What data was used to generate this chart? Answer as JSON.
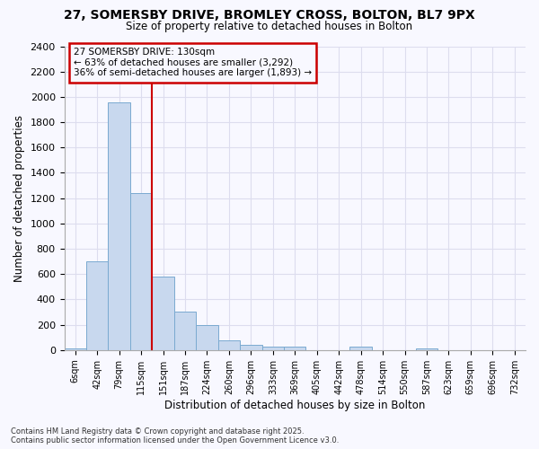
{
  "title1": "27, SOMERSBY DRIVE, BROMLEY CROSS, BOLTON, BL7 9PX",
  "title2": "Size of property relative to detached houses in Bolton",
  "xlabel": "Distribution of detached houses by size in Bolton",
  "ylabel": "Number of detached properties",
  "bar_labels": [
    "6sqm",
    "42sqm",
    "79sqm",
    "115sqm",
    "151sqm",
    "187sqm",
    "224sqm",
    "260sqm",
    "296sqm",
    "333sqm",
    "369sqm",
    "405sqm",
    "442sqm",
    "478sqm",
    "514sqm",
    "550sqm",
    "587sqm",
    "623sqm",
    "659sqm",
    "696sqm",
    "732sqm"
  ],
  "bar_values": [
    15,
    700,
    1960,
    1240,
    580,
    305,
    200,
    80,
    45,
    30,
    30,
    0,
    0,
    30,
    0,
    0,
    10,
    0,
    0,
    0,
    0
  ],
  "bar_color": "#c8d8ee",
  "bar_edge_color": "#7aaad0",
  "bar_width": 1.0,
  "ylim": [
    0,
    2400
  ],
  "yticks": [
    0,
    200,
    400,
    600,
    800,
    1000,
    1200,
    1400,
    1600,
    1800,
    2000,
    2200,
    2400
  ],
  "property_line_x": 3.5,
  "property_line_color": "#cc0000",
  "annotation_text_line1": "27 SOMERSBY DRIVE: 130sqm",
  "annotation_text_line2": "← 63% of detached houses are smaller (3,292)",
  "annotation_text_line3": "36% of semi-detached houses are larger (1,893) →",
  "annotation_box_color": "#cc0000",
  "bg_color": "#f8f8ff",
  "grid_color": "#ddddee",
  "footer1": "Contains HM Land Registry data © Crown copyright and database right 2025.",
  "footer2": "Contains public sector information licensed under the Open Government Licence v3.0."
}
